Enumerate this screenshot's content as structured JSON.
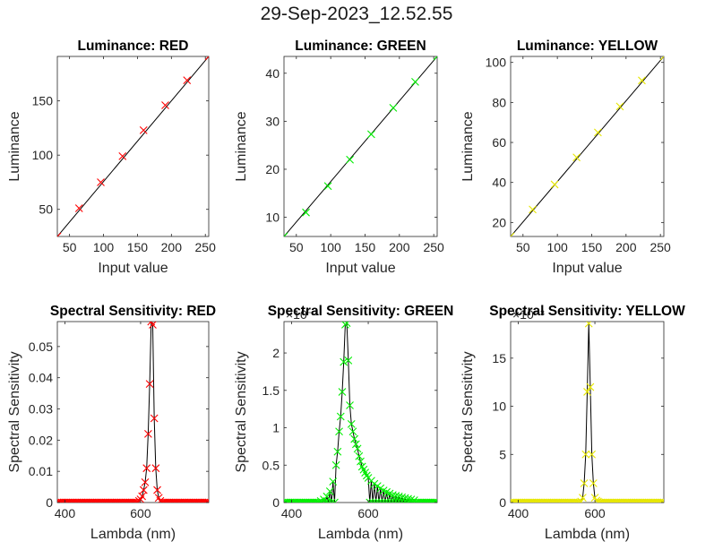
{
  "figure_title": "29-Sep-2023_12.52.55",
  "chart_data": [
    {
      "type": "line",
      "title": "Luminance: RED",
      "xlabel": "Input value",
      "ylabel": "Luminance",
      "xlim": [
        32,
        255
      ],
      "ylim": [
        25,
        191
      ],
      "xticks": [
        50,
        100,
        150,
        200,
        250
      ],
      "yticks": [
        50,
        100,
        150
      ],
      "color": "#ff0000",
      "series": [
        {
          "x": [
            32,
            64,
            96,
            128,
            159,
            191,
            223,
            255
          ],
          "y": [
            25,
            51,
            75,
            99,
            123,
            146,
            169,
            191
          ]
        }
      ],
      "fit_line": {
        "x": [
          32,
          255
        ],
        "y": [
          25,
          191
        ]
      },
      "grid": false
    },
    {
      "type": "line",
      "title": "Luminance: GREEN",
      "xlabel": "Input value",
      "ylabel": "Luminance",
      "xlim": [
        32,
        255
      ],
      "ylim": [
        6,
        43.5
      ],
      "xticks": [
        50,
        100,
        150,
        200,
        250
      ],
      "yticks": [
        10,
        20,
        30,
        40
      ],
      "color": "#00ee00",
      "series": [
        {
          "x": [
            32,
            64,
            96,
            128,
            159,
            191,
            223,
            255
          ],
          "y": [
            6,
            11,
            16.5,
            22,
            27.3,
            32.8,
            38.2,
            43.5
          ]
        }
      ],
      "fit_line": {
        "x": [
          32,
          255
        ],
        "y": [
          6,
          43.5
        ]
      },
      "grid": false
    },
    {
      "type": "line",
      "title": "Luminance: YELLOW",
      "xlabel": "Input value",
      "ylabel": "Luminance",
      "xlim": [
        32,
        255
      ],
      "ylim": [
        13,
        103
      ],
      "xticks": [
        50,
        100,
        150,
        200,
        250
      ],
      "yticks": [
        20,
        40,
        60,
        80,
        100
      ],
      "color": "#e6e600",
      "series": [
        {
          "x": [
            32,
            64,
            96,
            128,
            159,
            191,
            223,
            255
          ],
          "y": [
            13,
            26.5,
            39,
            52.5,
            65,
            78,
            91,
            103
          ]
        }
      ],
      "fit_line": {
        "x": [
          32,
          255
        ],
        "y": [
          13,
          103
        ]
      },
      "grid": false
    },
    {
      "type": "line",
      "title": "Spectral Sensitivity: RED",
      "xlabel": "Lambda (nm)",
      "ylabel": "Spectral Sensitivity",
      "xlim": [
        380,
        780
      ],
      "ylim": [
        0,
        0.058
      ],
      "xticks": [
        400,
        600
      ],
      "yticks": [
        0,
        0.01,
        0.02,
        0.03,
        0.04,
        0.05
      ],
      "ytick_labels": [
        "0",
        "0.01",
        "0.02",
        "0.03",
        "0.04",
        "0.05"
      ],
      "exponent_label": "",
      "color": "#ff0000",
      "peak": {
        "center": 628,
        "width": 10,
        "max": 0.058
      },
      "series": [
        {
          "x": [
            596,
            600,
            604,
            608,
            612,
            616,
            620,
            624,
            628,
            632,
            636,
            640,
            644,
            648,
            652
          ],
          "y": [
            0.0005,
            0.001,
            0.002,
            0.004,
            0.0065,
            0.011,
            0.022,
            0.038,
            0.058,
            0.057,
            0.027,
            0.011,
            0.004,
            0.0015,
            0.0005
          ]
        }
      ],
      "grid": false
    },
    {
      "type": "line",
      "title": "Spectral Sensitivity: GREEN",
      "xlabel": "Lambda (nm)",
      "ylabel": "Spectral Sensitivity",
      "xlim": [
        380,
        780
      ],
      "ylim": [
        0,
        2.42
      ],
      "xticks": [
        400,
        600
      ],
      "yticks": [
        0,
        0.5,
        1,
        1.5,
        2
      ],
      "ytick_labels": [
        "0",
        "0.5",
        "1",
        "1.5",
        "2"
      ],
      "exponent_label": "×10⁻³",
      "color": "#00ee00",
      "peak": {
        "center": 545,
        "width": 12,
        "max": 2.38
      },
      "series": [
        {
          "x": [
            476,
            484,
            492,
            500,
            508,
            516,
            520,
            524,
            528,
            532,
            536,
            540,
            544,
            548,
            552,
            556,
            560,
            564,
            568,
            572,
            576,
            580,
            584,
            588,
            592,
            596,
            600,
            608,
            616,
            624,
            632,
            640,
            648,
            656,
            664,
            672,
            680,
            688,
            696,
            704,
            712,
            720
          ],
          "y": [
            0.02,
            0.04,
            0.08,
            0.15,
            0.28,
            0.5,
            0.68,
            0.95,
            1.15,
            1.48,
            1.88,
            2.38,
            2.4,
            1.9,
            1.3,
            1.05,
            0.95,
            0.85,
            0.78,
            0.72,
            0.62,
            0.55,
            0.48,
            0.44,
            0.4,
            0.36,
            0.33,
            0.29,
            0.25,
            0.22,
            0.19,
            0.16,
            0.14,
            0.12,
            0.1,
            0.09,
            0.08,
            0.07,
            0.06,
            0.05,
            0.04,
            0.03
          ]
        }
      ],
      "grid": false
    },
    {
      "type": "line",
      "title": "Spectral Sensitivity: YELLOW",
      "xlabel": "Lambda (nm)",
      "ylabel": "Spectral Sensitivity",
      "xlim": [
        380,
        780
      ],
      "ylim": [
        0,
        18.8
      ],
      "xticks": [
        400,
        600
      ],
      "yticks": [
        0,
        5,
        10,
        15
      ],
      "ytick_labels": [
        "0",
        "5",
        "10",
        "15"
      ],
      "exponent_label": "×10⁻³",
      "color": "#e6e600",
      "peak": {
        "center": 587,
        "width": 6,
        "max": 18.6
      },
      "series": [
        {
          "x": [
            564,
            568,
            572,
            576,
            580,
            584,
            588,
            592,
            596,
            600,
            604,
            608
          ],
          "y": [
            0.1,
            0.5,
            2.0,
            5.0,
            11.5,
            18.6,
            12.0,
            5.0,
            2.0,
            0.5,
            0.2,
            0.1
          ]
        }
      ],
      "grid": false
    }
  ]
}
